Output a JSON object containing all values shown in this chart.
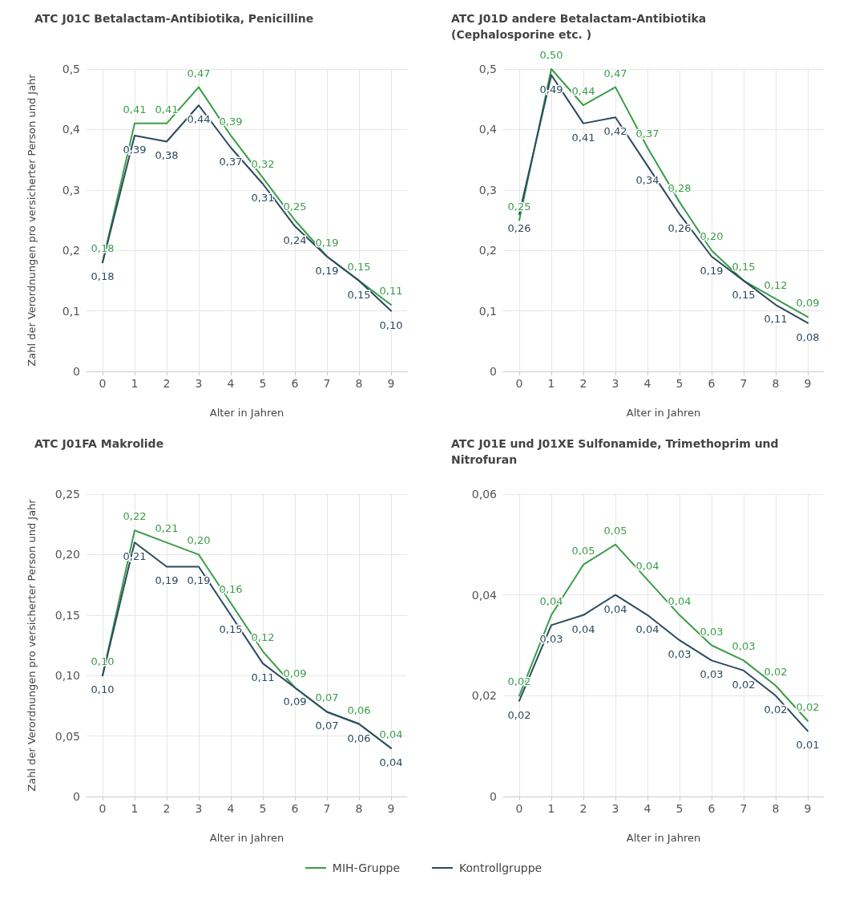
{
  "chart_data": [
    {
      "type": "line",
      "title": "ATC J01C Betalactam-Antibiotika, Penicilline",
      "xlabel": "Alter in Jahren",
      "ylabel": "Zahl der Verordnungen pro versicherter Person und Jahr",
      "categories": [
        "0",
        "1",
        "2",
        "3",
        "4",
        "5",
        "6",
        "7",
        "8",
        "9"
      ],
      "ylim": [
        0,
        0.5
      ],
      "yticks": [
        {
          "value": 0,
          "label": "0"
        },
        {
          "value": 0.1,
          "label": "0,1"
        },
        {
          "value": 0.2,
          "label": "0,2"
        },
        {
          "value": 0.3,
          "label": "0,3"
        },
        {
          "value": 0.4,
          "label": "0,4"
        },
        {
          "value": 0.5,
          "label": "0,5"
        }
      ],
      "grid": true,
      "marker": "none",
      "legend": "bottom",
      "series": [
        {
          "name": "MIH-Gruppe",
          "color": "#3a9d47",
          "values": [
            0.18,
            0.41,
            0.41,
            0.47,
            0.39,
            0.32,
            0.25,
            0.19,
            0.15,
            0.11
          ],
          "value_labels": [
            "0,18",
            "0,41",
            "0,41",
            "0,47",
            "0,39",
            "0,32",
            "0,25",
            "0,19",
            "0,15",
            "0,11"
          ]
        },
        {
          "name": "Kontrollgruppe",
          "color": "#2b4a5e",
          "values": [
            0.18,
            0.39,
            0.38,
            0.44,
            0.37,
            0.31,
            0.24,
            0.19,
            0.15,
            0.1
          ],
          "value_labels": [
            "0,18",
            "0,39",
            "0,38",
            "0,44",
            "0,37",
            "0,31",
            "0,24",
            "0,19",
            "0,15",
            "0,10"
          ]
        }
      ]
    },
    {
      "type": "line",
      "title": "ATC J01D andere Betalactam-Antibiotika (Cephalosporine etc. )",
      "xlabel": "Alter in Jahren",
      "categories": [
        "0",
        "1",
        "2",
        "3",
        "4",
        "5",
        "6",
        "7",
        "8",
        "9"
      ],
      "ylim": [
        0,
        0.5
      ],
      "yticks": [
        {
          "value": 0,
          "label": "0"
        },
        {
          "value": 0.1,
          "label": "0,1"
        },
        {
          "value": 0.2,
          "label": "0,2"
        },
        {
          "value": 0.3,
          "label": "0,3"
        },
        {
          "value": 0.4,
          "label": "0,4"
        },
        {
          "value": 0.5,
          "label": "0,5"
        }
      ],
      "grid": true,
      "marker": "none",
      "series": [
        {
          "color": "#3a9d47",
          "values": [
            0.25,
            0.5,
            0.44,
            0.47,
            0.37,
            0.28,
            0.2,
            0.15,
            0.12,
            0.09
          ],
          "value_labels": [
            "0,25",
            "0,50",
            "0,44",
            "0,47",
            "0,37",
            "0,28",
            "0,20",
            "0,15",
            "0,12",
            "0,09"
          ]
        },
        {
          "color": "#2b4a5e",
          "values": [
            0.26,
            0.49,
            0.41,
            0.42,
            0.34,
            0.26,
            0.19,
            0.15,
            0.11,
            0.08
          ],
          "value_labels": [
            "0,26",
            "0,49",
            "0,41",
            "0,42",
            "0,34",
            "0,26",
            "0,19",
            "0,15",
            "0,11",
            "0,08"
          ]
        }
      ]
    },
    {
      "type": "line",
      "title": "ATC J01FA Makrolide",
      "xlabel": "Alter in Jahren",
      "ylabel": "Zahl der Verordnungen pro versicherter Person und Jahr",
      "categories": [
        "0",
        "1",
        "2",
        "3",
        "4",
        "5",
        "6",
        "7",
        "8",
        "9"
      ],
      "ylim": [
        0,
        0.25
      ],
      "yticks": [
        {
          "value": 0,
          "label": "0"
        },
        {
          "value": 0.05,
          "label": "0,05"
        },
        {
          "value": 0.1,
          "label": "0,10"
        },
        {
          "value": 0.15,
          "label": "0,15"
        },
        {
          "value": 0.2,
          "label": "0,20"
        },
        {
          "value": 0.25,
          "label": "0,25"
        }
      ],
      "grid": true,
      "marker": "none",
      "series": [
        {
          "color": "#3a9d47",
          "values": [
            0.1,
            0.22,
            0.21,
            0.2,
            0.16,
            0.12,
            0.09,
            0.07,
            0.06,
            0.04
          ],
          "value_labels": [
            "0,10",
            "0,22",
            "0,21",
            "0,20",
            "0,16",
            "0,12",
            "0,09",
            "0,07",
            "0,06",
            "0,04"
          ]
        },
        {
          "color": "#2b4a5e",
          "values": [
            0.1,
            0.21,
            0.19,
            0.19,
            0.15,
            0.11,
            0.09,
            0.07,
            0.06,
            0.04
          ],
          "value_labels": [
            "0,10",
            "0,21",
            "0,19",
            "0,19",
            "0,15",
            "0,11",
            "0,09",
            "0,07",
            "0,06",
            "0,04"
          ]
        }
      ]
    },
    {
      "type": "line",
      "title": "ATC J01E und J01XE Sulfonamide, Trimethoprim und Nitrofuran",
      "xlabel": "Alter in Jahren",
      "categories": [
        "0",
        "1",
        "2",
        "3",
        "4",
        "5",
        "6",
        "7",
        "8",
        "9"
      ],
      "ylim": [
        0,
        0.06
      ],
      "yticks": [
        {
          "value": 0,
          "label": "0"
        },
        {
          "value": 0.02,
          "label": "0,02"
        },
        {
          "value": 0.04,
          "label": "0,04"
        },
        {
          "value": 0.06,
          "label": "0,06"
        }
      ],
      "grid": true,
      "marker": "none",
      "series": [
        {
          "color": "#3a9d47",
          "values": [
            0.02,
            0.036,
            0.046,
            0.05,
            0.043,
            0.036,
            0.03,
            0.027,
            0.022,
            0.015
          ],
          "value_labels": [
            "0,02",
            "0,04",
            "0,05",
            "0,05",
            "0,04",
            "0,04",
            "0,03",
            "0,03",
            "0,02",
            "0,02"
          ]
        },
        {
          "color": "#2b4a5e",
          "values": [
            0.019,
            0.034,
            0.036,
            0.04,
            0.036,
            0.031,
            0.027,
            0.025,
            0.02,
            0.013
          ],
          "value_labels": [
            "0,02",
            "0,03",
            "0,04",
            "0,04",
            "0,04",
            "0,03",
            "0,03",
            "0,02",
            "0,02",
            "0,01"
          ]
        }
      ]
    }
  ]
}
